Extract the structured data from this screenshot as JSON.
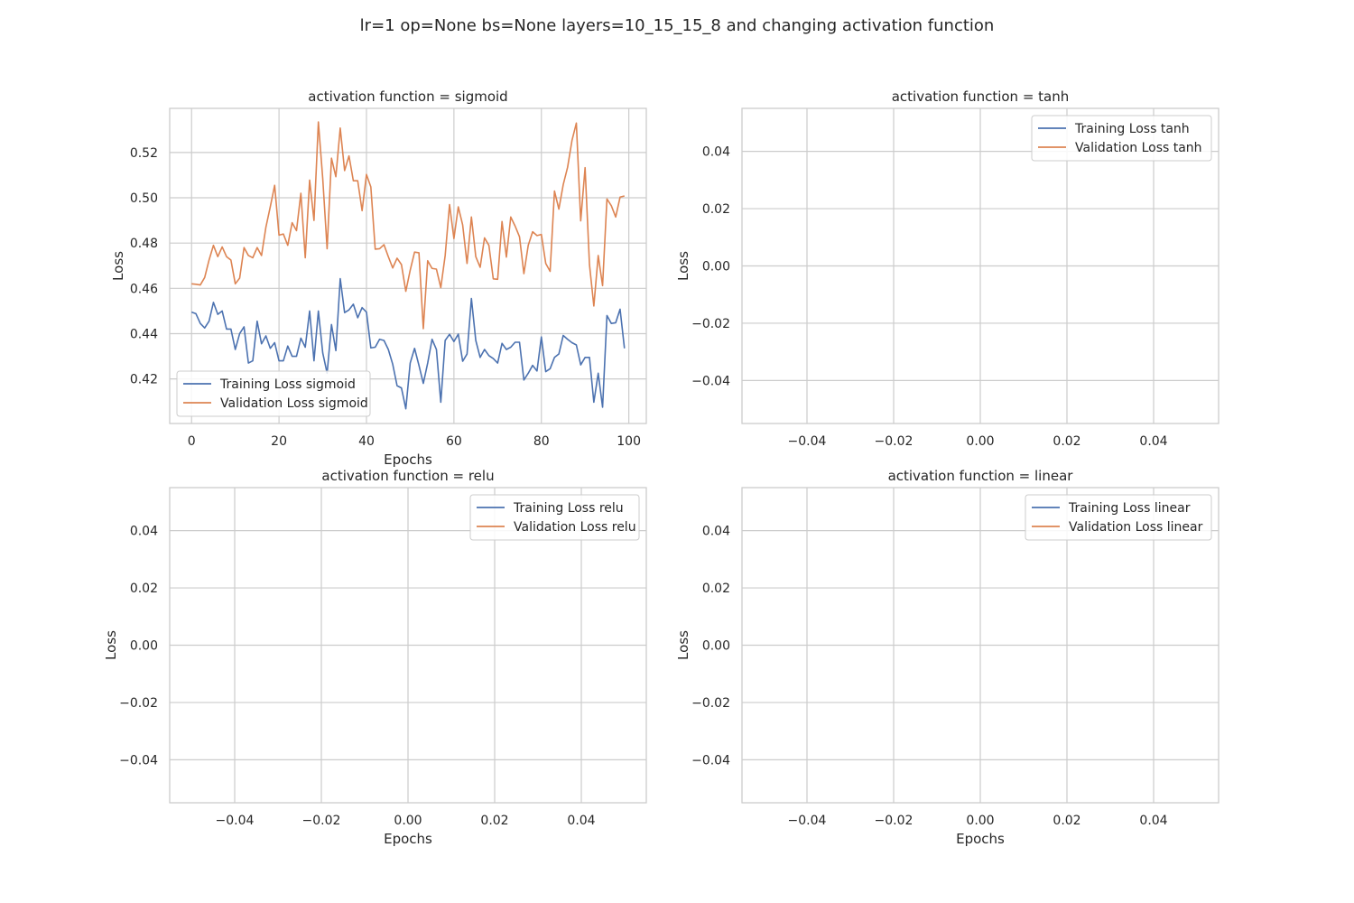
{
  "figure": {
    "suptitle": "lr=1 op=None bs=None layers=10_15_15_8 and changing activation function",
    "colors": {
      "training": "#4c72b0",
      "validation": "#dd8452",
      "grid": "#cccccc",
      "spine": "#cccccc",
      "text": "#262626"
    }
  },
  "chart_data": [
    {
      "type": "line",
      "title": "activation function = sigmoid",
      "xlabel": "Epochs",
      "ylabel": "Loss",
      "xlim": [
        -5,
        104
      ],
      "ylim": [
        0.4003,
        0.5395
      ],
      "xticks": [
        0,
        20,
        40,
        60,
        80,
        100
      ],
      "xtick_labels": [
        "0",
        "20",
        "40",
        "60",
        "80",
        "100"
      ],
      "yticks": [
        0.42,
        0.44,
        0.46,
        0.48,
        0.5,
        0.52
      ],
      "ytick_labels": [
        "0.42",
        "0.44",
        "0.46",
        "0.48",
        "0.50",
        "0.52"
      ],
      "grid": true,
      "legend_position": "lower-left",
      "series": [
        {
          "name": "Training Loss sigmoid",
          "color": "#4c72b0",
          "x": [
            0,
            1,
            2,
            3,
            4,
            5,
            6,
            7,
            8,
            9,
            10,
            11,
            12,
            13,
            14,
            15,
            16,
            17,
            18,
            19,
            20,
            21,
            22,
            23,
            24,
            25,
            26,
            27,
            28,
            29,
            30,
            31,
            32,
            33,
            34,
            35,
            36,
            37,
            38,
            39,
            40,
            41,
            42,
            43,
            44,
            45,
            46,
            47,
            48,
            49,
            50,
            51,
            52,
            53,
            54,
            55,
            56,
            57,
            58,
            59,
            60,
            61,
            62,
            63,
            64,
            65,
            66,
            67,
            68,
            69,
            70,
            71,
            72,
            73,
            74,
            75,
            76,
            77,
            78,
            79,
            80,
            81,
            82,
            83,
            84,
            85,
            86,
            87,
            88,
            89,
            90,
            91,
            92,
            93,
            94,
            95,
            96,
            97,
            98,
            99
          ],
          "values": [
            0.4495,
            0.4488,
            0.4445,
            0.4425,
            0.4455,
            0.4538,
            0.4485,
            0.45,
            0.442,
            0.442,
            0.433,
            0.44,
            0.443,
            0.427,
            0.428,
            0.4455,
            0.4355,
            0.439,
            0.4335,
            0.436,
            0.428,
            0.428,
            0.4345,
            0.43,
            0.43,
            0.438,
            0.434,
            0.45,
            0.428,
            0.45,
            0.4315,
            0.4225,
            0.444,
            0.4325,
            0.4643,
            0.4493,
            0.4505,
            0.453,
            0.447,
            0.4515,
            0.4495,
            0.4337,
            0.434,
            0.4375,
            0.437,
            0.433,
            0.4265,
            0.417,
            0.416,
            0.4068,
            0.427,
            0.4335,
            0.426,
            0.418,
            0.427,
            0.4375,
            0.433,
            0.4097,
            0.437,
            0.4397,
            0.4365,
            0.4398,
            0.4278,
            0.431,
            0.4555,
            0.437,
            0.4295,
            0.433,
            0.4303,
            0.429,
            0.427,
            0.4357,
            0.433,
            0.434,
            0.4362,
            0.4362,
            0.4195,
            0.4225,
            0.426,
            0.4235,
            0.4385,
            0.4232,
            0.4245,
            0.4295,
            0.431,
            0.4392,
            0.4375,
            0.436,
            0.435,
            0.4262,
            0.4295,
            0.4295,
            0.4097,
            0.4225,
            0.4075,
            0.448,
            0.4445,
            0.4448,
            0.4508,
            0.4335
          ]
        },
        {
          "name": "Validation Loss sigmoid",
          "color": "#dd8452",
          "x": [
            0,
            1,
            2,
            3,
            4,
            5,
            6,
            7,
            8,
            9,
            10,
            11,
            12,
            13,
            14,
            15,
            16,
            17,
            18,
            19,
            20,
            21,
            22,
            23,
            24,
            25,
            26,
            27,
            28,
            29,
            30,
            31,
            32,
            33,
            34,
            35,
            36,
            37,
            38,
            39,
            40,
            41,
            42,
            43,
            44,
            45,
            46,
            47,
            48,
            49,
            50,
            51,
            52,
            53,
            54,
            55,
            56,
            57,
            58,
            59,
            60,
            61,
            62,
            63,
            64,
            65,
            66,
            67,
            68,
            69,
            70,
            71,
            72,
            73,
            74,
            75,
            76,
            77,
            78,
            79,
            80,
            81,
            82,
            83,
            84,
            85,
            86,
            87,
            88,
            89,
            90,
            91,
            92,
            93,
            94,
            95,
            96,
            97,
            98,
            99
          ],
          "values": [
            0.462,
            0.4618,
            0.4615,
            0.4648,
            0.4725,
            0.479,
            0.474,
            0.4783,
            0.474,
            0.4725,
            0.462,
            0.4645,
            0.478,
            0.4745,
            0.4735,
            0.478,
            0.4745,
            0.487,
            0.496,
            0.5055,
            0.4835,
            0.484,
            0.479,
            0.489,
            0.4855,
            0.502,
            0.4735,
            0.5078,
            0.49,
            0.5335,
            0.5085,
            0.4775,
            0.5175,
            0.5093,
            0.5308,
            0.512,
            0.5185,
            0.5075,
            0.5075,
            0.4943,
            0.5103,
            0.5048,
            0.4773,
            0.4775,
            0.4793,
            0.474,
            0.469,
            0.4733,
            0.4705,
            0.4587,
            0.468,
            0.476,
            0.4757,
            0.4422,
            0.4722,
            0.4688,
            0.4685,
            0.4603,
            0.4745,
            0.497,
            0.482,
            0.496,
            0.488,
            0.471,
            0.4915,
            0.474,
            0.4693,
            0.4823,
            0.479,
            0.4642,
            0.464,
            0.4895,
            0.4738,
            0.4915,
            0.4875,
            0.4828,
            0.4665,
            0.479,
            0.485,
            0.4833,
            0.4838,
            0.471,
            0.4675,
            0.503,
            0.495,
            0.5058,
            0.5135,
            0.5253,
            0.533,
            0.4898,
            0.5133,
            0.4705,
            0.4522,
            0.4745,
            0.4612,
            0.4995,
            0.4965,
            0.4915,
            0.5003,
            0.5008
          ]
        }
      ]
    },
    {
      "type": "line",
      "title": "activation function = tanh",
      "xlabel": "",
      "ylabel": "Loss",
      "xlim": [
        -0.055,
        0.055
      ],
      "ylim": [
        -0.055,
        0.055
      ],
      "xticks": [
        -0.04,
        -0.02,
        0.0,
        0.02,
        0.04
      ],
      "xtick_labels": [
        "−0.04",
        "−0.02",
        "0.00",
        "0.02",
        "0.04"
      ],
      "yticks": [
        -0.04,
        -0.02,
        0.0,
        0.02,
        0.04
      ],
      "ytick_labels": [
        "−0.04",
        "−0.02",
        "0.00",
        "0.02",
        "0.04"
      ],
      "grid": true,
      "legend_position": "upper-right",
      "series": [
        {
          "name": "Training Loss tanh",
          "color": "#4c72b0",
          "x": [],
          "values": []
        },
        {
          "name": "Validation Loss tanh",
          "color": "#dd8452",
          "x": [],
          "values": []
        }
      ]
    },
    {
      "type": "line",
      "title": "activation function = relu",
      "xlabel": "Epochs",
      "ylabel": "Loss",
      "xlim": [
        -0.055,
        0.055
      ],
      "ylim": [
        -0.055,
        0.055
      ],
      "xticks": [
        -0.04,
        -0.02,
        0.0,
        0.02,
        0.04
      ],
      "xtick_labels": [
        "−0.04",
        "−0.02",
        "0.00",
        "0.02",
        "0.04"
      ],
      "yticks": [
        -0.04,
        -0.02,
        0.0,
        0.02,
        0.04
      ],
      "ytick_labels": [
        "−0.04",
        "−0.02",
        "0.00",
        "0.02",
        "0.04"
      ],
      "grid": true,
      "legend_position": "upper-right",
      "series": [
        {
          "name": "Training Loss relu",
          "color": "#4c72b0",
          "x": [],
          "values": []
        },
        {
          "name": "Validation Loss relu",
          "color": "#dd8452",
          "x": [],
          "values": []
        }
      ]
    },
    {
      "type": "line",
      "title": "activation function = linear",
      "xlabel": "Epochs",
      "ylabel": "Loss",
      "xlim": [
        -0.055,
        0.055
      ],
      "ylim": [
        -0.055,
        0.055
      ],
      "xticks": [
        -0.04,
        -0.02,
        0.0,
        0.02,
        0.04
      ],
      "xtick_labels": [
        "−0.04",
        "−0.02",
        "0.00",
        "0.02",
        "0.04"
      ],
      "yticks": [
        -0.04,
        -0.02,
        0.0,
        0.02,
        0.04
      ],
      "ytick_labels": [
        "−0.04",
        "−0.02",
        "0.00",
        "0.02",
        "0.04"
      ],
      "grid": true,
      "legend_position": "upper-right",
      "series": [
        {
          "name": "Training Loss linear",
          "color": "#4c72b0",
          "x": [],
          "values": []
        },
        {
          "name": "Validation Loss linear",
          "color": "#dd8452",
          "x": [],
          "values": []
        }
      ]
    }
  ]
}
